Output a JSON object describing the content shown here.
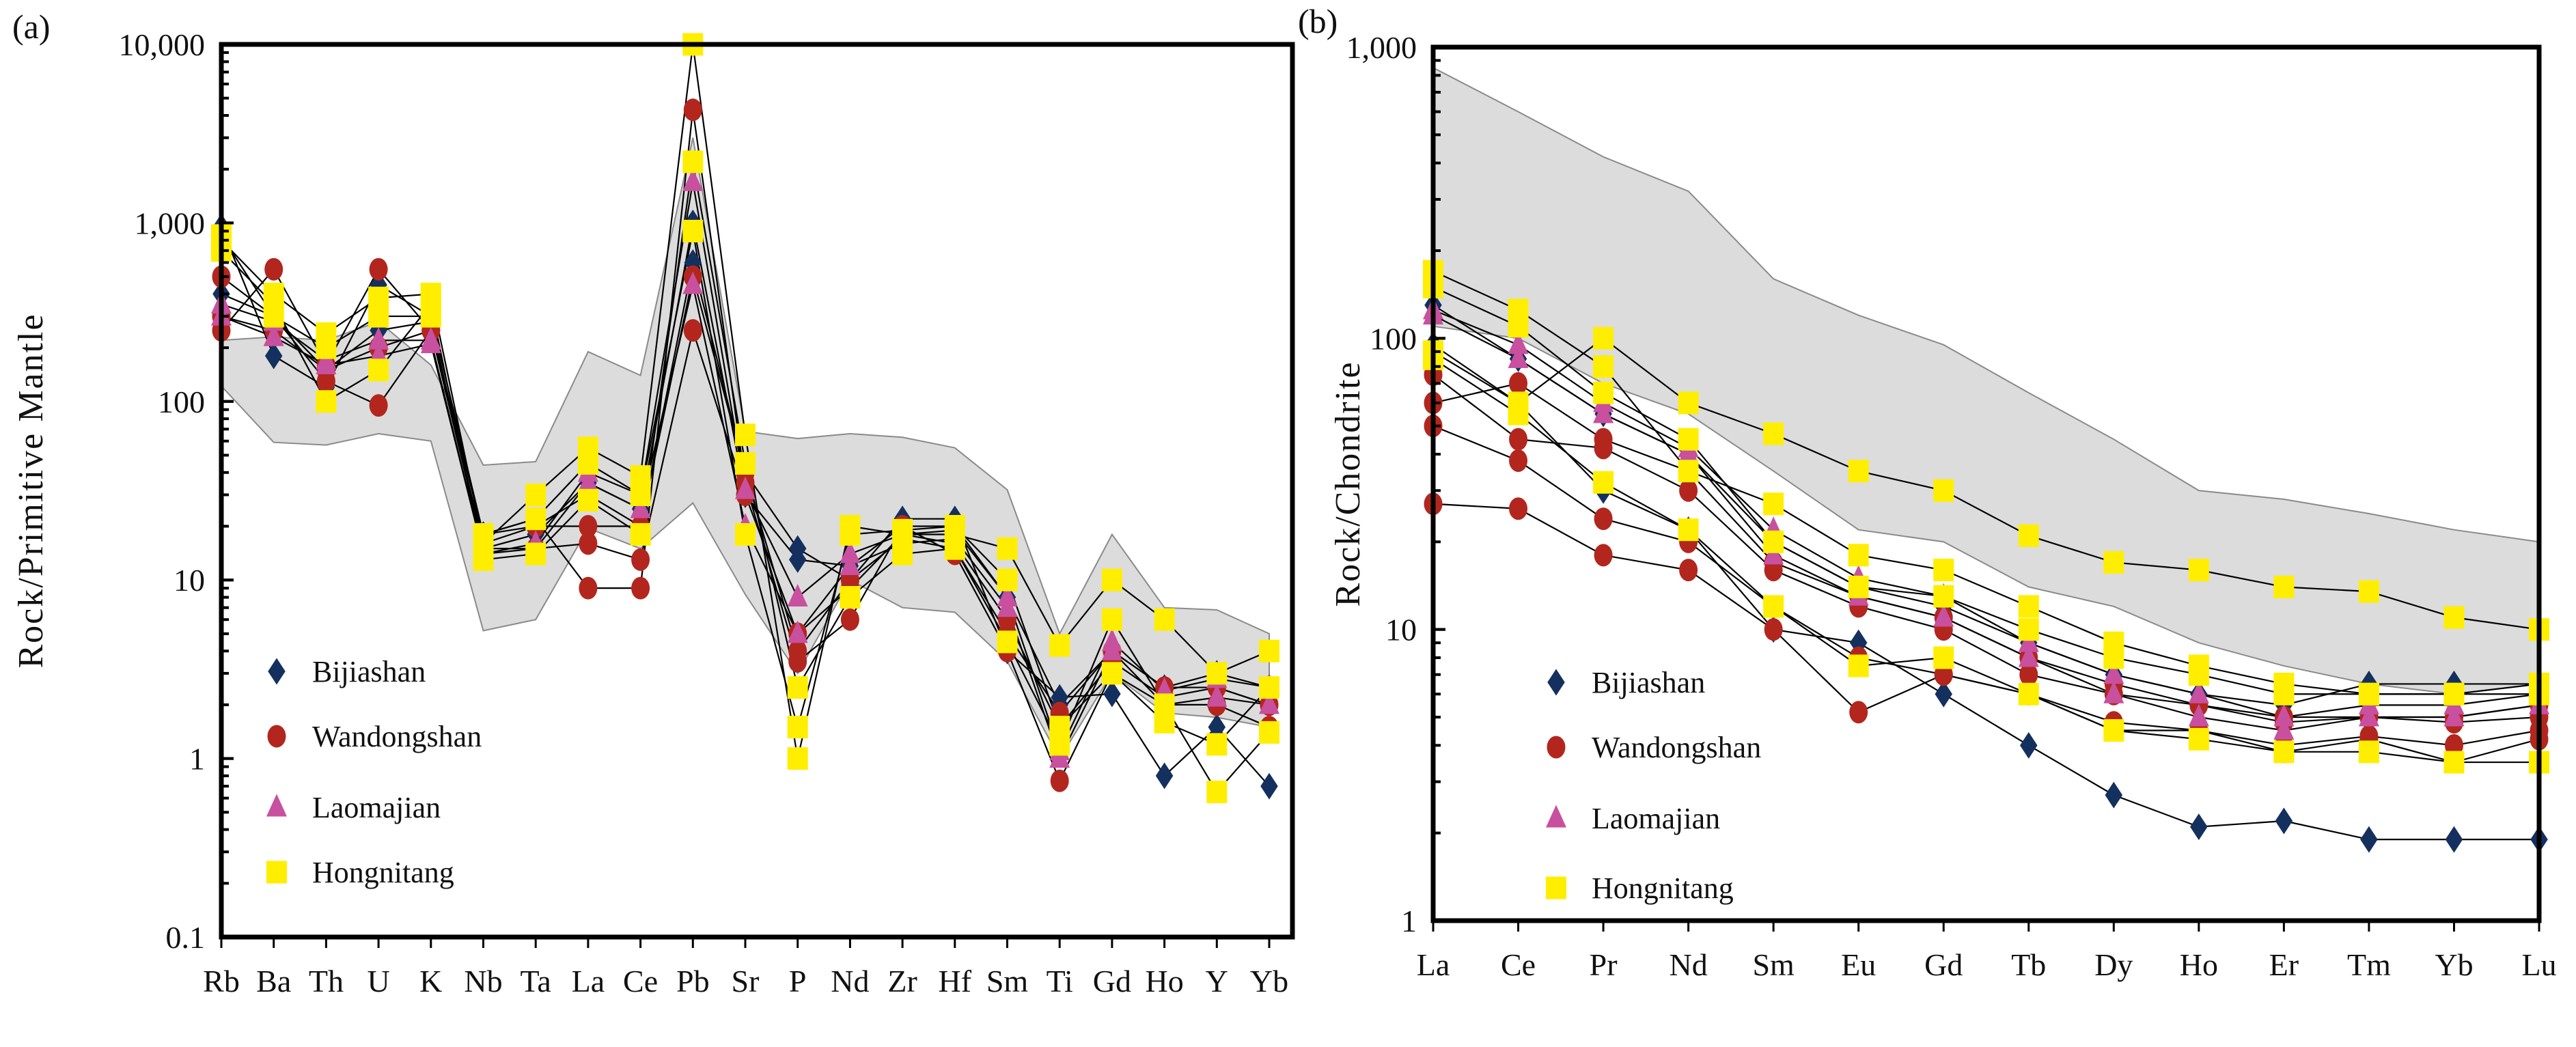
{
  "chart_data": [
    {
      "type": "line",
      "panel_label": "(a)",
      "title": "",
      "xlabel": "",
      "ylabel": "Rock/Primitive Mantle",
      "yscale": "log",
      "ylim": [
        0.1,
        10000
      ],
      "yticks": [
        {
          "value": 10000,
          "label": "10,000"
        },
        {
          "value": 1000,
          "label": "1,000"
        },
        {
          "value": 100,
          "label": "100"
        },
        {
          "value": 10,
          "label": "10"
        },
        {
          "value": 1,
          "label": "1"
        },
        {
          "value": 0.1,
          "label": "0.1"
        }
      ],
      "categories": [
        "Rb",
        "Ba",
        "Th",
        "U",
        "K",
        "Nb",
        "Ta",
        "La",
        "Ce",
        "Pb",
        "Sr",
        "P",
        "Nd",
        "Zr",
        "Hf",
        "Sm",
        "Ti",
        "Gd",
        "Ho",
        "Y",
        "Yb"
      ],
      "legend_position": "bottom-left",
      "reference_field": {
        "upper": [
          220,
          230,
          220,
          280,
          160,
          44,
          46,
          190,
          140,
          3000,
          68,
          62,
          66,
          63,
          55,
          32,
          5,
          18,
          7,
          6.8,
          5
        ],
        "lower": [
          122,
          59,
          57,
          66,
          60,
          5.2,
          6,
          19.5,
          15,
          27,
          8.3,
          3,
          10,
          7,
          6.6,
          3.5,
          1,
          3,
          1.8,
          1.7,
          1.5
        ]
      },
      "series": [
        {
          "name": "Bijiashan",
          "marker": "diamond",
          "color": "#14305f",
          "samples": [
            [
              950,
              180,
              120,
              450,
              300,
              18,
              20,
              30,
              20,
              600,
              40,
              15,
              10,
              22,
              22,
              4,
              2.2,
              2.3,
              0.8,
              1.5,
              0.7
            ],
            [
              400,
              300,
              150,
              250,
              280,
              15,
              18,
              35,
              25,
              1000,
              30,
              13,
              12,
              20,
              20,
              8,
              2,
              4,
              2.5,
              3,
              2.5
            ]
          ]
        },
        {
          "name": "Wandongshan",
          "marker": "circle",
          "color": "#b3261e",
          "samples": [
            [
              250,
              550,
              160,
              550,
              250,
              18,
              22,
              9,
              9,
              4300,
              35,
              3.5,
              6,
              20,
              14,
              4,
              0.75,
              3,
              2,
              2,
              1.5
            ],
            [
              500,
              300,
              130,
              95,
              250,
              15,
              15,
              16,
              13,
              250,
              30,
              5,
              9,
              18,
              16,
              6,
              1.5,
              3.5,
              2.2,
              2.5,
              2
            ],
            [
              300,
              250,
              150,
              200,
              250,
              16,
              20,
              20,
              20,
              500,
              40,
              4,
              10,
              17,
              15,
              5,
              1.8,
              4,
              2.5,
              2.5,
              2
            ]
          ]
        },
        {
          "name": "Laomajian",
          "marker": "triangle",
          "color": "#c8509e",
          "samples": [
            [
              350,
              280,
              170,
              220,
              220,
              14,
              16,
              40,
              30,
              1700,
              32,
              8,
              14,
              18,
              19,
              8,
              1.1,
              4.5,
              2.4,
              2.8,
              2.5
            ],
            [
              300,
              230,
              160,
              180,
              210,
              14,
              15,
              35,
              25,
              450,
              20,
              5,
              12,
              16,
              17,
              7,
              1,
              4,
              2,
              2.2,
              2
            ]
          ]
        },
        {
          "name": "Hongnitang",
          "marker": "square",
          "color": "#ffee00",
          "samples": [
            [
              800,
              400,
              240,
              380,
              400,
              16,
              30,
              55,
              38,
              10000,
              65,
              1,
              20,
              18,
              18,
              15,
              4.3,
              10,
              6,
              3,
              4
            ],
            [
              700,
              350,
              100,
              150,
              350,
              13,
              14,
              28,
              18,
              2200,
              45,
              2.5,
              8,
              14,
              15,
              4.5,
              1.2,
              6,
              2,
              0.65,
              1.4
            ],
            [
              850,
              300,
              200,
              300,
              300,
              18,
              22,
              45,
              30,
              900,
              18,
              1.5,
              18,
              19,
              20,
              10,
              1.5,
              3,
              1.6,
              1.2,
              2.5
            ]
          ]
        }
      ]
    },
    {
      "type": "line",
      "panel_label": "(b)",
      "title": "",
      "xlabel": "",
      "ylabel": "Rock/Chondrite",
      "yscale": "log",
      "ylim": [
        1,
        1000
      ],
      "yticks": [
        {
          "value": 1000,
          "label": "1,000"
        },
        {
          "value": 100,
          "label": "100"
        },
        {
          "value": 10,
          "label": "10"
        },
        {
          "value": 1,
          "label": "1"
        }
      ],
      "categories": [
        "La",
        "Ce",
        "Pr",
        "Nd",
        "Sm",
        "Eu",
        "Gd",
        "Tb",
        "Dy",
        "Ho",
        "Er",
        "Tm",
        "Yb",
        "Lu"
      ],
      "legend_position": "bottom-left",
      "reference_field": {
        "upper": [
          850,
          600,
          420,
          320,
          160,
          120,
          95,
          65,
          45,
          30,
          28,
          25,
          22,
          20
        ],
        "lower": [
          110,
          100,
          70,
          55,
          35,
          22,
          20,
          14,
          12,
          9,
          7.5,
          6.5,
          6,
          6.5
        ]
      },
      "series": [
        {
          "name": "Bijiashan",
          "marker": "diamond",
          "color": "#14305f",
          "samples": [
            [
              130,
              85,
              55,
              40,
              20,
              14,
              12,
              9,
              7,
              6,
              5.5,
              6.5,
              6.5,
              6.5
            ],
            [
              95,
              60,
              30,
              22,
              10,
              9,
              6,
              4,
              2.7,
              2.1,
              2.2,
              1.9,
              1.9,
              1.9
            ]
          ]
        },
        {
          "name": "Wandongshan",
          "marker": "circle",
          "color": "#b3261e",
          "samples": [
            [
              27,
              26,
              18,
              16,
              10,
              5.2,
              7,
              6,
              4.5,
              4.5,
              3.8,
              4.2,
              3.5,
              4.2
            ],
            [
              50,
              38,
              24,
              20,
              12,
              8,
              7,
              6,
              4.8,
              4.5,
              4,
              4.3,
              4,
              4.5
            ],
            [
              75,
              45,
              42,
              30,
              16,
              12,
              10,
              7,
              6,
              5.5,
              5,
              5,
              5,
              5.5
            ],
            [
              60,
              70,
              45,
              35,
              17,
              13,
              11,
              8,
              6.5,
              5.5,
              4.8,
              5,
              4.8,
              5
            ]
          ]
        },
        {
          "name": "Laomajian",
          "marker": "triangle",
          "color": "#c8509e",
          "samples": [
            [
              125,
              95,
              60,
              42,
              22,
              15,
              13,
              9,
              7,
              6,
              5,
              5.5,
              5.5,
              6
            ],
            [
              120,
              85,
              55,
              40,
              18,
              13,
              11,
              8,
              6,
              5,
              4.5,
              5,
              5,
              5.5
            ]
          ]
        },
        {
          "name": "Hongnitang",
          "marker": "square",
          "color": "#ffee00",
          "samples": [
            [
              90,
              60,
              100,
              60,
              47,
              35,
              30,
              21,
              17,
              16,
              14,
              13.5,
              11,
              10
            ],
            [
              170,
              125,
              80,
              35,
              27,
              18,
              16,
              12,
              9,
              7.5,
              6.5,
              6,
              6,
              6
            ],
            [
              85,
              55,
              32,
              22,
              12,
              7.5,
              8,
              6,
              4.5,
              4.2,
              3.8,
              3.8,
              3.5,
              3.5
            ],
            [
              150,
              110,
              65,
              45,
              20,
              14,
              13,
              10,
              8,
              7,
              6,
              6,
              6,
              6.5
            ]
          ]
        }
      ]
    }
  ]
}
